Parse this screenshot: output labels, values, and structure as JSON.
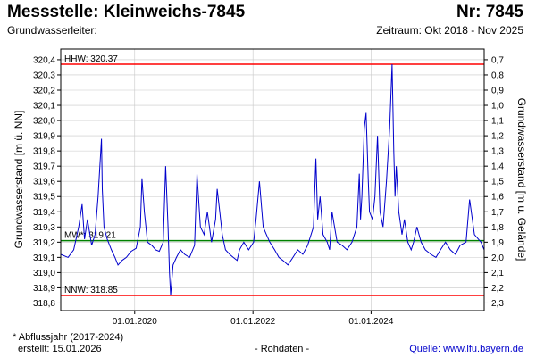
{
  "header": {
    "title": "Messstelle: Kleinweichs-7845",
    "number": "Nr: 7845",
    "aquifer_label": "Grundwasserleiter:",
    "period": "Zeitraum: Okt 2018 - Nov 2025"
  },
  "footer": {
    "note": "* Abflussjahr (2017-2024)",
    "created": "erstellt:  15.01.2026",
    "center": "- Rohdaten -",
    "source": "Quelle:  www.lfu.bayern.de"
  },
  "colors": {
    "series": "#0000cc",
    "extreme_lines": "#ff0000",
    "mean_line": "#008000",
    "grid": "#c8c8c8"
  },
  "chart_data": {
    "type": "line",
    "ylabel": "Grundwasserstand [m ü. NN]",
    "y2label": "Grundwasserstand [m u. Gelände]",
    "ylim": [
      318.75,
      320.47
    ],
    "y_ticks": [
      318.8,
      318.9,
      319.0,
      319.1,
      319.2,
      319.3,
      319.4,
      319.5,
      319.6,
      319.7,
      319.8,
      319.9,
      320.0,
      320.1,
      320.2,
      320.3,
      320.4
    ],
    "y_tick_labels": [
      "318,8",
      "318,9",
      "319,0",
      "319,1",
      "319,2",
      "319,3",
      "319,4",
      "319,5",
      "319,6",
      "319,7",
      "319,8",
      "319,9",
      "320,0",
      "320,1",
      "320,2",
      "320,3",
      "320,4"
    ],
    "y2_ticks": [
      0.7,
      0.8,
      0.9,
      1.0,
      1.1,
      1.2,
      1.3,
      1.4,
      1.5,
      1.6,
      1.7,
      1.8,
      1.9,
      2.0,
      2.1,
      2.2,
      2.3
    ],
    "y2_tick_labels": [
      "0,7",
      "0,8",
      "0,9",
      "1,0",
      "1,1",
      "1,2",
      "1,3",
      "1,4",
      "1,5",
      "1,6",
      "1,7",
      "1,8",
      "1,9",
      "2,0",
      "2,1",
      "2,2",
      "2,3"
    ],
    "y2_reference": 321.1,
    "xlim": [
      "2018-10-01",
      "2025-11-30"
    ],
    "x_ticks": [
      "2020-01-01",
      "2022-01-01",
      "2024-01-01"
    ],
    "x_tick_labels": [
      "01.01.2020",
      "01.01.2022",
      "01.01.2024"
    ],
    "grid": true,
    "reference_lines": [
      {
        "label": "HHW: 320.37",
        "value": 320.37,
        "color": "#ff0000"
      },
      {
        "label": "MW*: 319.21",
        "value": 319.21,
        "color": "#008000"
      },
      {
        "label": "NNW: 318.85",
        "value": 318.85,
        "color": "#ff0000"
      }
    ],
    "series": [
      {
        "x": [
          "2018-10-01",
          "2018-11-15",
          "2018-12-20",
          "2019-01-20",
          "2019-02-10",
          "2019-02-25",
          "2019-03-15",
          "2019-04-10",
          "2019-05-01",
          "2019-05-20",
          "2019-06-10",
          "2019-06-15",
          "2019-06-25",
          "2019-07-15",
          "2019-08-10",
          "2019-09-01",
          "2019-09-20",
          "2019-10-15",
          "2019-11-10",
          "2019-12-10",
          "2020-01-10",
          "2020-02-05",
          "2020-02-15",
          "2020-03-01",
          "2020-03-20",
          "2020-04-15",
          "2020-05-10",
          "2020-06-01",
          "2020-06-25",
          "2020-07-10",
          "2020-07-25",
          "2020-08-03",
          "2020-08-10",
          "2020-08-25",
          "2020-09-15",
          "2020-10-10",
          "2020-11-05",
          "2020-12-05",
          "2021-01-05",
          "2021-01-20",
          "2021-02-10",
          "2021-03-05",
          "2021-03-25",
          "2021-04-20",
          "2021-05-15",
          "2021-05-25",
          "2021-06-10",
          "2021-06-25",
          "2021-07-15",
          "2021-08-10",
          "2021-09-01",
          "2021-09-25",
          "2021-10-10",
          "2021-11-05",
          "2021-12-05",
          "2022-01-05",
          "2022-01-20",
          "2022-02-10",
          "2022-03-05",
          "2022-03-25",
          "2022-04-15",
          "2022-05-15",
          "2022-06-10",
          "2022-07-05",
          "2022-08-05",
          "2022-09-05",
          "2022-10-05",
          "2022-11-05",
          "2022-12-05",
          "2023-01-10",
          "2023-01-25",
          "2023-02-05",
          "2023-02-20",
          "2023-03-10",
          "2023-04-05",
          "2023-04-20",
          "2023-05-05",
          "2023-05-20",
          "2023-06-05",
          "2023-07-05",
          "2023-08-05",
          "2023-09-05",
          "2023-10-05",
          "2023-10-20",
          "2023-10-28",
          "2023-11-05",
          "2023-11-20",
          "2023-12-01",
          "2023-12-15",
          "2023-12-22",
          "2024-01-10",
          "2024-01-25",
          "2024-02-10",
          "2024-02-25",
          "2024-03-15",
          "2024-04-05",
          "2024-04-25",
          "2024-05-10",
          "2024-05-20",
          "2024-05-28",
          "2024-06-05",
          "2024-06-20",
          "2024-07-10",
          "2024-07-25",
          "2024-08-15",
          "2024-09-05",
          "2024-09-20",
          "2024-10-10",
          "2024-11-05",
          "2024-12-01",
          "2025-01-05",
          "2025-02-05",
          "2025-03-05",
          "2025-04-05",
          "2025-05-05",
          "2025-06-05",
          "2025-07-05",
          "2025-08-10",
          "2025-09-01",
          "2025-10-01",
          "2025-10-25",
          "2025-11-10",
          "2025-11-30"
        ],
        "y": [
          319.12,
          319.1,
          319.15,
          319.3,
          319.45,
          319.22,
          319.35,
          319.18,
          319.25,
          319.5,
          319.88,
          319.55,
          319.3,
          319.22,
          319.15,
          319.1,
          319.05,
          319.08,
          319.1,
          319.14,
          319.16,
          319.3,
          319.62,
          319.4,
          319.2,
          319.18,
          319.15,
          319.14,
          319.2,
          319.7,
          319.3,
          319.0,
          318.85,
          319.05,
          319.1,
          319.15,
          319.12,
          319.1,
          319.18,
          319.65,
          319.3,
          319.25,
          319.4,
          319.2,
          319.35,
          319.55,
          319.4,
          319.25,
          319.15,
          319.12,
          319.1,
          319.08,
          319.15,
          319.2,
          319.15,
          319.2,
          319.35,
          319.6,
          319.3,
          319.25,
          319.2,
          319.15,
          319.1,
          319.08,
          319.05,
          319.1,
          319.15,
          319.12,
          319.18,
          319.3,
          319.75,
          319.35,
          319.5,
          319.25,
          319.2,
          319.15,
          319.4,
          319.3,
          319.2,
          319.18,
          319.15,
          319.2,
          319.3,
          319.65,
          319.35,
          319.5,
          319.95,
          320.05,
          319.6,
          319.4,
          319.35,
          319.5,
          319.9,
          319.4,
          319.3,
          319.6,
          319.95,
          320.37,
          319.8,
          319.5,
          319.7,
          319.4,
          319.25,
          319.35,
          319.2,
          319.15,
          319.2,
          319.3,
          319.2,
          319.15,
          319.12,
          319.1,
          319.15,
          319.2,
          319.15,
          319.12,
          319.18,
          319.2,
          319.48,
          319.25,
          319.22,
          319.2,
          319.15
        ]
      }
    ]
  }
}
